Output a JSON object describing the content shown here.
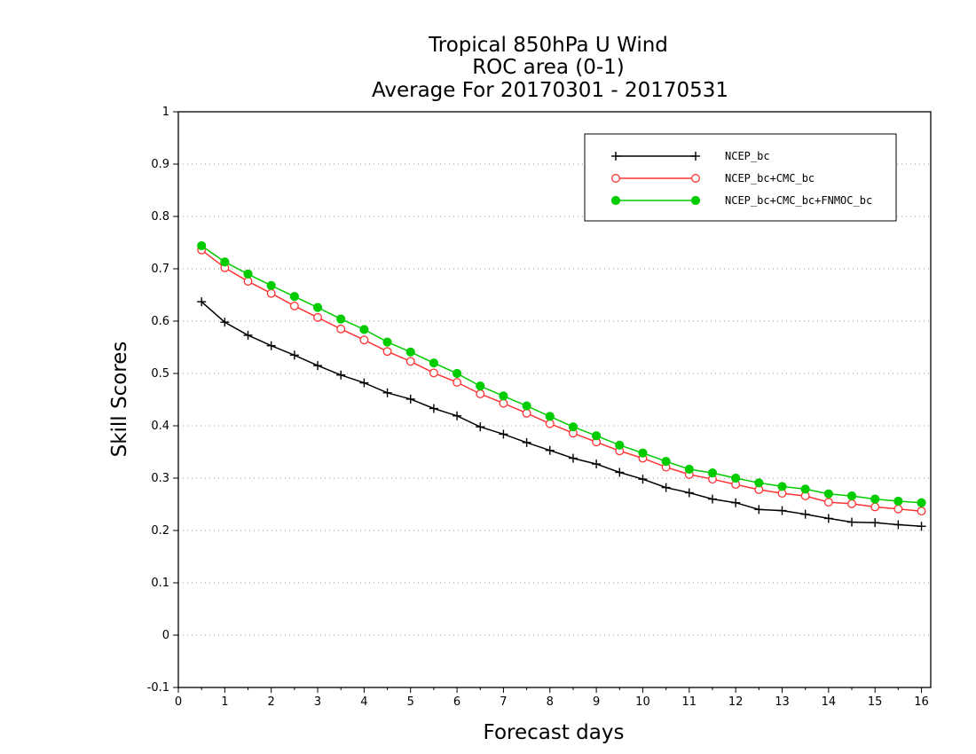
{
  "chart_data": {
    "type": "line",
    "title_lines": [
      "Tropical 850hPa U Wind",
      "ROC area (0-1)",
      "Average For 20170301 - 20170531"
    ],
    "xlabel": "Forecast days",
    "ylabel": "Skill Scores",
    "xlim": [
      0,
      16.2
    ],
    "ylim": [
      -0.1,
      1.0
    ],
    "xticks": [
      0,
      1,
      2,
      3,
      4,
      5,
      6,
      7,
      8,
      9,
      10,
      11,
      12,
      13,
      14,
      15,
      16
    ],
    "yticks": [
      -0.1,
      0,
      0.1,
      0.2,
      0.3,
      0.4,
      0.5,
      0.6,
      0.7,
      0.8,
      0.9,
      1
    ],
    "ytick_labels": [
      "-0.1",
      "0",
      "0.1",
      "0.2",
      "0.3",
      "0.4",
      "0.5",
      "0.6",
      "0.7",
      "0.8",
      "0.9",
      "1"
    ],
    "grid": true,
    "legend_position": "top-right",
    "x": [
      0.5,
      1,
      1.5,
      2,
      2.5,
      3,
      3.5,
      4,
      4.5,
      5,
      5.5,
      6,
      6.5,
      7,
      7.5,
      8,
      8.5,
      9,
      9.5,
      10,
      10.5,
      11,
      11.5,
      12,
      12.5,
      13,
      13.5,
      14,
      14.5,
      15,
      15.5,
      16
    ],
    "series": [
      {
        "name": "NCEP_bc",
        "color": "#000000",
        "marker": "plus",
        "values": [
          0.637,
          0.598,
          0.573,
          0.553,
          0.535,
          0.515,
          0.497,
          0.482,
          0.463,
          0.451,
          0.433,
          0.419,
          0.398,
          0.384,
          0.368,
          0.353,
          0.338,
          0.327,
          0.311,
          0.298,
          0.282,
          0.272,
          0.26,
          0.253,
          0.24,
          0.238,
          0.231,
          0.223,
          0.216,
          0.215,
          0.211,
          0.208
        ]
      },
      {
        "name": "NCEP_bc+CMC_bc",
        "color": "#ff3333",
        "marker": "open-circle",
        "values": [
          0.736,
          0.702,
          0.676,
          0.653,
          0.629,
          0.607,
          0.585,
          0.564,
          0.542,
          0.523,
          0.501,
          0.483,
          0.461,
          0.443,
          0.424,
          0.404,
          0.386,
          0.369,
          0.352,
          0.338,
          0.321,
          0.307,
          0.298,
          0.288,
          0.278,
          0.271,
          0.266,
          0.254,
          0.251,
          0.245,
          0.241,
          0.237
        ]
      },
      {
        "name": "NCEP_bc+CMC_bc+FNMOC_bc",
        "color": "#00cc00",
        "marker": "filled-circle",
        "values": [
          0.744,
          0.713,
          0.69,
          0.668,
          0.647,
          0.626,
          0.604,
          0.584,
          0.56,
          0.541,
          0.52,
          0.5,
          0.476,
          0.457,
          0.438,
          0.418,
          0.398,
          0.381,
          0.363,
          0.348,
          0.332,
          0.317,
          0.31,
          0.3,
          0.291,
          0.284,
          0.279,
          0.27,
          0.266,
          0.26,
          0.256,
          0.253
        ]
      }
    ]
  }
}
